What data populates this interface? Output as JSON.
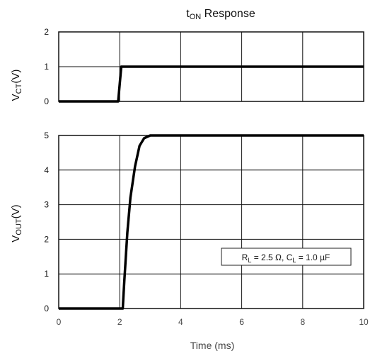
{
  "chart_data": {
    "type": "line",
    "title": {
      "main": "t",
      "sub": "ON",
      "rest": " Response"
    },
    "xlabel": "Time (ms)",
    "xlim": [
      0,
      10
    ],
    "x_ticks": [
      "0",
      "2",
      "4",
      "6",
      "8",
      "10"
    ],
    "grid": true,
    "panels": [
      {
        "id": "vct",
        "ylabel": {
          "main": "V",
          "sub": "CT",
          "rest": "(V)"
        },
        "ylim": [
          0,
          2
        ],
        "y_ticks": [
          "0",
          "1",
          "2"
        ],
        "series": [
          {
            "x": [
              0,
              1.95,
              2.0,
              2.05,
              10
            ],
            "y": [
              0,
              0,
              0.5,
              1.0,
              1.0
            ]
          }
        ]
      },
      {
        "id": "vout",
        "ylabel": {
          "main": "V",
          "sub": "OUT",
          "rest": "(V)"
        },
        "ylim": [
          0,
          5
        ],
        "y_ticks": [
          "0",
          "1",
          "2",
          "3",
          "4",
          "5"
        ],
        "series": [
          {
            "x": [
              0,
              2.1,
              2.15,
              2.25,
              2.35,
              2.5,
              2.65,
              2.8,
              3.0,
              10
            ],
            "y": [
              0,
              0,
              0.8,
              2.2,
              3.2,
              4.1,
              4.7,
              4.92,
              5.0,
              5.0
            ]
          }
        ]
      }
    ],
    "annotation": {
      "parts": [
        {
          "t": "R",
          "sub": false
        },
        {
          "t": "L",
          "sub": true
        },
        {
          "t": " = 2.5 Ω, C",
          "sub": false
        },
        {
          "t": "L",
          "sub": true
        },
        {
          "t": " = 1.0 µF",
          "sub": false
        }
      ]
    },
    "line_color": "#000000"
  }
}
